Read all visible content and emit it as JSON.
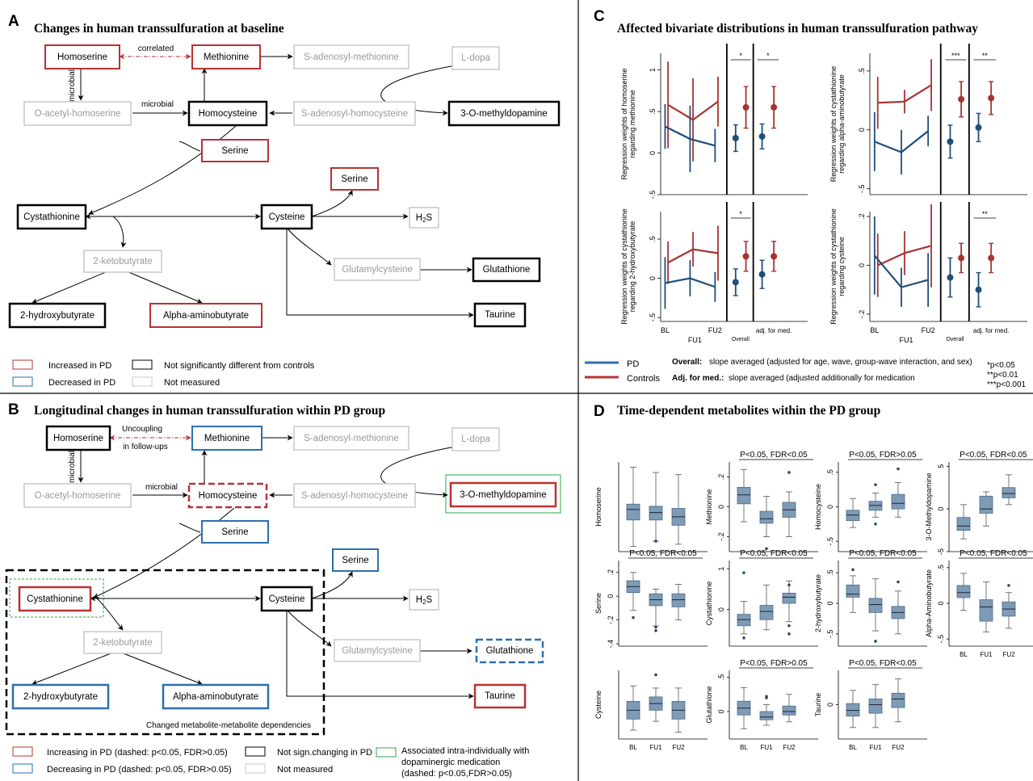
{
  "panels": {
    "A": {
      "letter": "A",
      "title": "Changes in human transsulfuration at baseline"
    },
    "B": {
      "letter": "B",
      "title": "Longitudinal changes in human transsulfuration within PD group"
    },
    "C": {
      "letter": "C",
      "title": "Affected bivariate distributions in human transsulfuration pathway"
    },
    "D": {
      "letter": "D",
      "title": "Time-dependent metabolites within the PD group"
    }
  },
  "colors": {
    "red": "#b83232",
    "blue": "#2e6fb0",
    "black": "#000000",
    "gray": "#c8c8c8",
    "green": "#2ea84a",
    "pd_line": "#1f4e79",
    "ctrl_line": "#a83232",
    "box_fill": "#7e9bb6"
  },
  "metabolites": {
    "homoserine": "Homoserine",
    "methionine": "Methionine",
    "sam": "S-adenosyl-methionine",
    "ldopa": "L-dopa",
    "oacetyl": "O-acetyl-homoserine",
    "homocysteine": "Homocysteine",
    "sah": "S-adenosyl-homocysteine",
    "omd": "3-O-methyldopamine",
    "serine": "Serine",
    "cystathionine": "Cystathionine",
    "cysteine": "Cysteine",
    "h2s": "H2S",
    "ketobutyrate": "2-ketobutyrate",
    "glutamylcysteine": "Glutamylcysteine",
    "glutathione": "Glutathione",
    "hydroxybutyrate": "2-hydroxybutyrate",
    "aminobutyrate": "Alpha-aminobutyrate",
    "taurine": "Taurine"
  },
  "edge_labels": {
    "correlated": "correlated",
    "microbial": "microbial",
    "uncoupling1": "Uncoupling",
    "uncoupling2": "in follow-ups",
    "changed_dep": "Changed metabolite-metabolite dependencies"
  },
  "legend_A": {
    "increased": "Increased in PD",
    "decreased": "Decreased in PD",
    "not_sig": "Not significantly different from controls",
    "not_measured": "Not measured"
  },
  "legend_B": {
    "increasing": "Increasing in PD (dashed: p<0.05, FDR>0.05)",
    "decreasing": "Decreasing in PD (dashed: p<0.05, FDR>0.05)",
    "not_sign": "Not sign.changing in PD",
    "not_measured": "Not measured",
    "assoc1": "Associated intra-individually with",
    "assoc2": "dopaminergic medication",
    "assoc3": "(dashed: p<0.05,FDR>0.05)"
  },
  "legend_C": {
    "pd": "PD",
    "controls": "Controls",
    "overall_label": "Overall:",
    "overall_text": "slope averaged (adjusted for age, wave, group-wave interaction, and sex)",
    "adj_label": "Adj. for med.:",
    "adj_text": "slope averaged (adjusted additionally for medication",
    "p1": "*p<0.05",
    "p2": "**p<0.01",
    "p3": "***p<0.001"
  },
  "chart_data": [
    {
      "type": "line",
      "panel": "C1",
      "ylabel_1": "Regression weights of homoserine",
      "ylabel_2": "regarding methionine",
      "yticks": [
        "-.5",
        "0",
        ".5",
        "1"
      ],
      "ylim": [
        -0.5,
        1.2
      ],
      "x": [
        "BL",
        "FU1",
        "FU2"
      ],
      "series": [
        {
          "name": "PD",
          "values": [
            0.32,
            0.17,
            0.09
          ],
          "err": [
            0.27,
            0.4,
            0.2
          ]
        },
        {
          "name": "Controls",
          "values": [
            0.58,
            0.4,
            0.62
          ],
          "err": [
            0.52,
            0.5,
            0.3
          ]
        }
      ],
      "overall": {
        "pd": [
          0.18,
          0.16
        ],
        "ctrl": [
          0.55,
          0.25
        ]
      },
      "adj": {
        "pd": [
          0.2,
          0.15
        ],
        "ctrl": [
          0.55,
          0.25
        ]
      },
      "sig_overall": "*",
      "sig_adj": "*"
    },
    {
      "type": "line",
      "panel": "C2",
      "ylabel_1": "Regression weights of cystathionine",
      "ylabel_2": "regarding alpha-aminobutyrate",
      "yticks": [
        "-.5",
        "0",
        ".5"
      ],
      "ylim": [
        -0.55,
        0.65
      ],
      "x": [
        "BL",
        "FU1",
        "FU2"
      ],
      "series": [
        {
          "name": "PD",
          "values": [
            -0.1,
            -0.19,
            -0.01
          ],
          "err": [
            0.25,
            0.19,
            0.13
          ]
        },
        {
          "name": "Controls",
          "values": [
            0.23,
            0.24,
            0.38
          ],
          "err": [
            0.22,
            0.1,
            0.22
          ]
        }
      ],
      "overall": {
        "pd": [
          -0.1,
          0.14
        ],
        "ctrl": [
          0.26,
          0.15
        ]
      },
      "adj": {
        "pd": [
          0.02,
          0.12
        ],
        "ctrl": [
          0.27,
          0.14
        ]
      },
      "sig_overall": "***",
      "sig_adj": "**"
    },
    {
      "type": "line",
      "panel": "C3",
      "ylabel_1": "Regression weights of cystathionine",
      "ylabel_2": "regarding 2-hydroxybutyrate",
      "yticks": [
        "-.5",
        "0",
        ".5"
      ],
      "ylim": [
        -0.55,
        0.85
      ],
      "x": [
        "BL",
        "FU1",
        "FU2"
      ],
      "series": [
        {
          "name": "PD",
          "values": [
            -0.06,
            0.0,
            -0.11
          ],
          "err": [
            0.33,
            0.23,
            0.19
          ]
        },
        {
          "name": "Controls",
          "values": [
            0.2,
            0.37,
            0.32
          ],
          "err": [
            0.27,
            0.22,
            0.35
          ]
        }
      ],
      "overall": {
        "pd": [
          -0.05,
          0.17
        ],
        "ctrl": [
          0.28,
          0.19
        ]
      },
      "adj": {
        "pd": [
          0.05,
          0.18
        ],
        "ctrl": [
          0.28,
          0.19
        ]
      },
      "sig_overall": "*",
      "sig_adj": ""
    },
    {
      "type": "line",
      "panel": "C4",
      "ylabel_1": "Regression weights of cystathionine",
      "ylabel_2": "regarding cysteine",
      "yticks": [
        "-.2",
        "0",
        ".2"
      ],
      "ylim": [
        -0.23,
        0.22
      ],
      "x": [
        "BL",
        "FU1",
        "FU2"
      ],
      "series": [
        {
          "name": "PD",
          "values": [
            0.04,
            -0.09,
            -0.06
          ],
          "err": [
            0.16,
            0.08,
            0.11
          ]
        },
        {
          "name": "Controls",
          "values": [
            0.0,
            0.05,
            0.08
          ],
          "err": [
            0.13,
            0.09,
            0.17
          ]
        }
      ],
      "overall": {
        "pd": [
          -0.05,
          0.08
        ],
        "ctrl": [
          0.03,
          0.06
        ]
      },
      "adj": {
        "pd": [
          -0.1,
          0.07
        ],
        "ctrl": [
          0.03,
          0.06
        ]
      },
      "sig_overall": "",
      "sig_adj": "**"
    }
  ],
  "c_labels": {
    "bl": "BL",
    "fu1": "FU1",
    "fu2": "FU2",
    "overall": "Overall",
    "adj": "adj. for med."
  },
  "boxplots": [
    {
      "name": "Homoserine",
      "sig": "",
      "yticks": [],
      "boxes": [
        [
          -0.3,
          -0.05,
          0.05,
          0.1,
          0.45
        ],
        [
          -0.25,
          -0.05,
          0.02,
          0.08,
          0.4
        ],
        [
          -0.28,
          -0.1,
          -0.02,
          0.06,
          0.38
        ]
      ],
      "out": [
        [],
        [
          -0.25
        ],
        []
      ]
    },
    {
      "name": "Methionine",
      "sig": "P<0.05, FDR<0.05",
      "yticks": [
        ".2",
        "0",
        "-.2"
      ],
      "boxes": [
        [
          -0.1,
          0.02,
          0.08,
          0.13,
          0.25
        ],
        [
          -0.2,
          -0.11,
          -0.08,
          -0.03,
          0.07
        ],
        [
          -0.2,
          -0.07,
          -0.02,
          0.03,
          0.1
        ]
      ],
      "out": [
        [],
        [
          -0.28
        ],
        [
          0.23
        ]
      ]
    },
    {
      "name": "Homocysteine",
      "sig": "P<0.05, FDR>0.05",
      "yticks": [
        ".5",
        "0",
        "-.5"
      ],
      "boxes": [
        [
          -0.3,
          -0.2,
          -0.12,
          -0.05,
          0.12
        ],
        [
          -0.15,
          -0.05,
          0.02,
          0.08,
          0.2
        ],
        [
          -0.15,
          -0.03,
          0.05,
          0.18,
          0.35
        ]
      ],
      "out": [
        [],
        [
          0.32,
          -0.25
        ],
        [
          0.55
        ]
      ]
    },
    {
      "name": "3-O-Methyldopamine",
      "sig": "P<0.05, FDR<0.05",
      "yticks": [
        "5",
        "0",
        "-5"
      ],
      "boxes": [
        [
          -3.5,
          -2.5,
          -2,
          -1,
          0.5
        ],
        [
          -2,
          -0.5,
          0,
          1.5,
          2
        ],
        [
          0.5,
          1.3,
          1.8,
          2.5,
          4
        ]
      ],
      "out": [
        [],
        [],
        []
      ]
    },
    {
      "name": "Serine",
      "sig": "P<0.05, FDR<0.05",
      "yticks": [
        ".2",
        "0",
        "-.2",
        "-.4"
      ],
      "boxes": [
        [
          -0.12,
          0.03,
          0.08,
          0.13,
          0.2
        ],
        [
          -0.25,
          -0.08,
          -0.03,
          0.02,
          0.06
        ],
        [
          -0.2,
          -0.09,
          -0.03,
          0.02,
          0.1
        ]
      ],
      "out": [
        [
          -0.18
        ],
        [
          -0.26,
          -0.29
        ],
        []
      ]
    },
    {
      "name": "Cystathionine",
      "sig": "P<0.05, FDR<0.05",
      "yticks": [
        "1",
        "0"
      ],
      "boxes": [
        [
          -0.6,
          -0.4,
          -0.25,
          -0.12,
          0.2
        ],
        [
          -0.5,
          -0.25,
          -0.05,
          0.1,
          0.6
        ],
        [
          -0.3,
          0.15,
          0.3,
          0.4,
          0.7
        ]
      ],
      "out": [
        [
          0.9,
          -0.7
        ],
        [],
        [
          0.6,
          -0.4,
          -0.6
        ]
      ]
    },
    {
      "name": "2-hydroxybutyrate",
      "sig": "P<0.05, FDR<0.05",
      "yticks": [
        ".5",
        "0",
        "-.5"
      ],
      "boxes": [
        [
          -0.15,
          0.1,
          0.15,
          0.3,
          0.45
        ],
        [
          -0.45,
          -0.15,
          -0.02,
          0.08,
          0.4
        ],
        [
          -0.5,
          -0.25,
          -0.15,
          -0.05,
          0.2
        ]
      ],
      "out": [
        [
          0.55
        ],
        [
          -0.62
        ],
        [
          0.35
        ]
      ]
    },
    {
      "name": "Alpha-Aminobutyrate",
      "sig": "P<0.05, FDR<0.05",
      "yticks": [
        ".5",
        "0",
        "-.5"
      ],
      "boxes": [
        [
          -0.1,
          0.08,
          0.15,
          0.25,
          0.42
        ],
        [
          -0.4,
          -0.25,
          -0.05,
          0.05,
          0.3
        ],
        [
          -0.35,
          -0.18,
          -0.08,
          0.02,
          0.15
        ]
      ],
      "out": [
        [],
        [],
        [
          0.25
        ]
      ]
    },
    {
      "name": "Cysteine",
      "sig": "",
      "yticks": [],
      "boxes": [
        [
          -0.5,
          -0.25,
          -0.05,
          0.15,
          0.5
        ],
        [
          -0.3,
          -0.05,
          0.1,
          0.25,
          0.45
        ],
        [
          -0.55,
          -0.25,
          -0.05,
          0.15,
          0.45
        ]
      ],
      "out": [
        [],
        [
          0.75
        ],
        []
      ]
    },
    {
      "name": "Glutathione",
      "sig": "P<0.05, FDR>0.05",
      "yticks": [
        ".5",
        "0"
      ],
      "boxes": [
        [
          -0.25,
          -0.05,
          0.05,
          0.15,
          0.35
        ],
        [
          -0.2,
          -0.12,
          -0.08,
          0.0,
          0.1
        ],
        [
          -0.15,
          -0.05,
          0.0,
          0.08,
          0.25
        ]
      ],
      "out": [
        [],
        [
          0.2,
          0.22
        ],
        []
      ]
    },
    {
      "name": "Taurine",
      "sig": "P<0.05, FDR<0.05",
      "yticks": [
        "0"
      ],
      "boxes": [
        [
          -0.4,
          -0.2,
          -0.1,
          0.02,
          0.25
        ],
        [
          -0.4,
          -0.15,
          0.0,
          0.1,
          0.35
        ],
        [
          -0.3,
          -0.05,
          0.1,
          0.2,
          0.45
        ]
      ],
      "out": [
        [],
        [],
        []
      ]
    }
  ],
  "d_labels": {
    "bl": "BL",
    "fu1": "FU1",
    "fu2": "FU2"
  }
}
